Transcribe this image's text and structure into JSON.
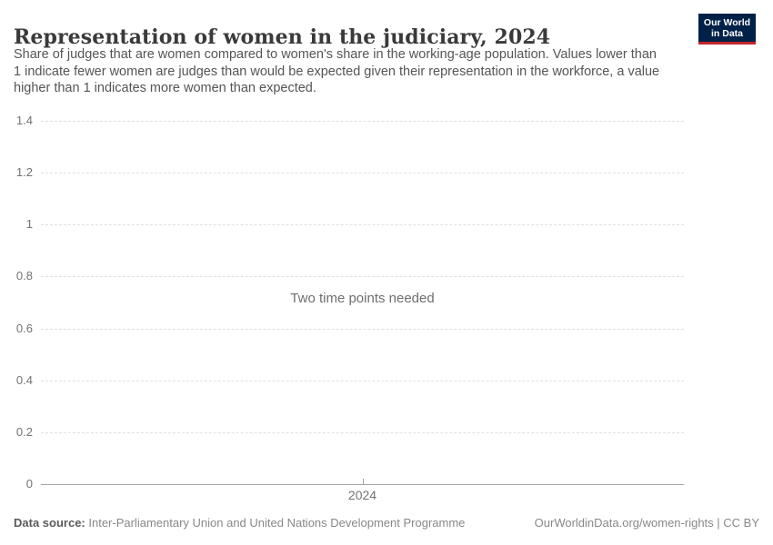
{
  "header": {
    "title": "Representation of women in the judiciary, 2024",
    "subtitle_lines": [
      "Share of judges that are women compared to women's share in the working-age population. Values lower than",
      "1 indicate fewer women are judges than would be expected given their representation in the workforce, a value",
      "higher than 1 indicates more women than expected."
    ],
    "logo": {
      "line1": "Our World",
      "line2": "in Data"
    }
  },
  "chart_data": {
    "type": "line",
    "title": "Representation of women in the judiciary, 2024",
    "series": [],
    "empty_state_message": "Two time points needed",
    "x_tick_labels": [
      "2024"
    ],
    "y_ticks": [
      {
        "value": 0,
        "label": "0"
      },
      {
        "value": 0.2,
        "label": "0.2"
      },
      {
        "value": 0.4,
        "label": "0.4"
      },
      {
        "value": 0.6,
        "label": "0.6"
      },
      {
        "value": 0.8,
        "label": "0.8"
      },
      {
        "value": 1,
        "label": "1"
      },
      {
        "value": 1.2,
        "label": "1.2"
      },
      {
        "value": 1.4,
        "label": "1.4"
      }
    ],
    "ylim": [
      0,
      1.4
    ],
    "grid": "horizontal-dashed",
    "legend_position": "none"
  },
  "footer": {
    "data_source_label": "Data source:",
    "data_source_text": " Inter-Parliamentary Union and United Nations Development Programme",
    "attribution": "OurWorldinData.org/women-rights | CC BY"
  },
  "colors": {
    "logo_background": "#002147",
    "logo_stripe": "#c5262c",
    "title_text": "#3a3a3a",
    "subtitle_text": "#555555",
    "axis_text": "#737373",
    "gridline": "#e0e0e0",
    "axis_line": "#a5a5a5",
    "empty_message_text": "#6e6e6e"
  }
}
